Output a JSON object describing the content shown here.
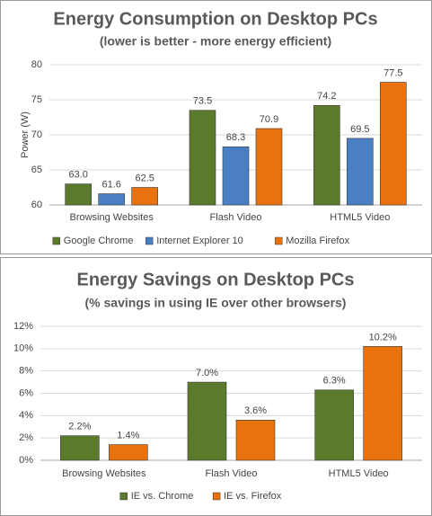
{
  "chart_data": [
    {
      "type": "bar",
      "title": "Energy Consumption on Desktop PCs",
      "subtitle": "(lower is better - more energy efficient)",
      "y_label": "Power (W)",
      "categories": [
        "Browsing Websites",
        "Flash Video",
        "HTML5 Video"
      ],
      "series": [
        {
          "name": "Google Chrome",
          "color": "#5b7a2c",
          "values": [
            63.0,
            73.5,
            74.2
          ],
          "value_labels": [
            "63.0",
            "73.5",
            "74.2"
          ]
        },
        {
          "name": "Internet Explorer 10",
          "color": "#4a7fc4",
          "values": [
            61.6,
            68.3,
            69.5
          ],
          "value_labels": [
            "61.6",
            "68.3",
            "69.5"
          ]
        },
        {
          "name": "Mozilla Firefox",
          "color": "#e8730e",
          "values": [
            62.5,
            70.9,
            77.5
          ],
          "value_labels": [
            "62.5",
            "70.9",
            "77.5"
          ]
        }
      ],
      "ylim": [
        60,
        80
      ],
      "yticks": [
        60,
        65,
        70,
        75,
        80
      ],
      "grid": true,
      "legend": "bottom"
    },
    {
      "type": "bar",
      "title": "Energy Savings on Desktop PCs",
      "subtitle": "(% savings in using IE over other browsers)",
      "categories": [
        "Browsing Websites",
        "Flash Video",
        "HTML5 Video"
      ],
      "series": [
        {
          "name": "IE vs. Chrome",
          "color": "#5b7a2c",
          "values": [
            2.2,
            7.0,
            6.3
          ],
          "value_labels": [
            "2.2%",
            "7.0%",
            "6.3%"
          ]
        },
        {
          "name": "IE vs. Firefox",
          "color": "#e8730e",
          "values": [
            1.4,
            3.6,
            10.2
          ],
          "value_labels": [
            "1.4%",
            "3.6%",
            "10.2%"
          ]
        }
      ],
      "ylim": [
        0,
        12
      ],
      "yticks": [
        {
          "value": 0,
          "label": "0%"
        },
        {
          "value": 2,
          "label": "2%"
        },
        {
          "value": 4,
          "label": "4%"
        },
        {
          "value": 6,
          "label": "6%"
        },
        {
          "value": 8,
          "label": "8%"
        },
        {
          "value": 10,
          "label": "10%"
        },
        {
          "value": 12,
          "label": "12%"
        }
      ],
      "grid": true,
      "legend": "bottom"
    }
  ]
}
